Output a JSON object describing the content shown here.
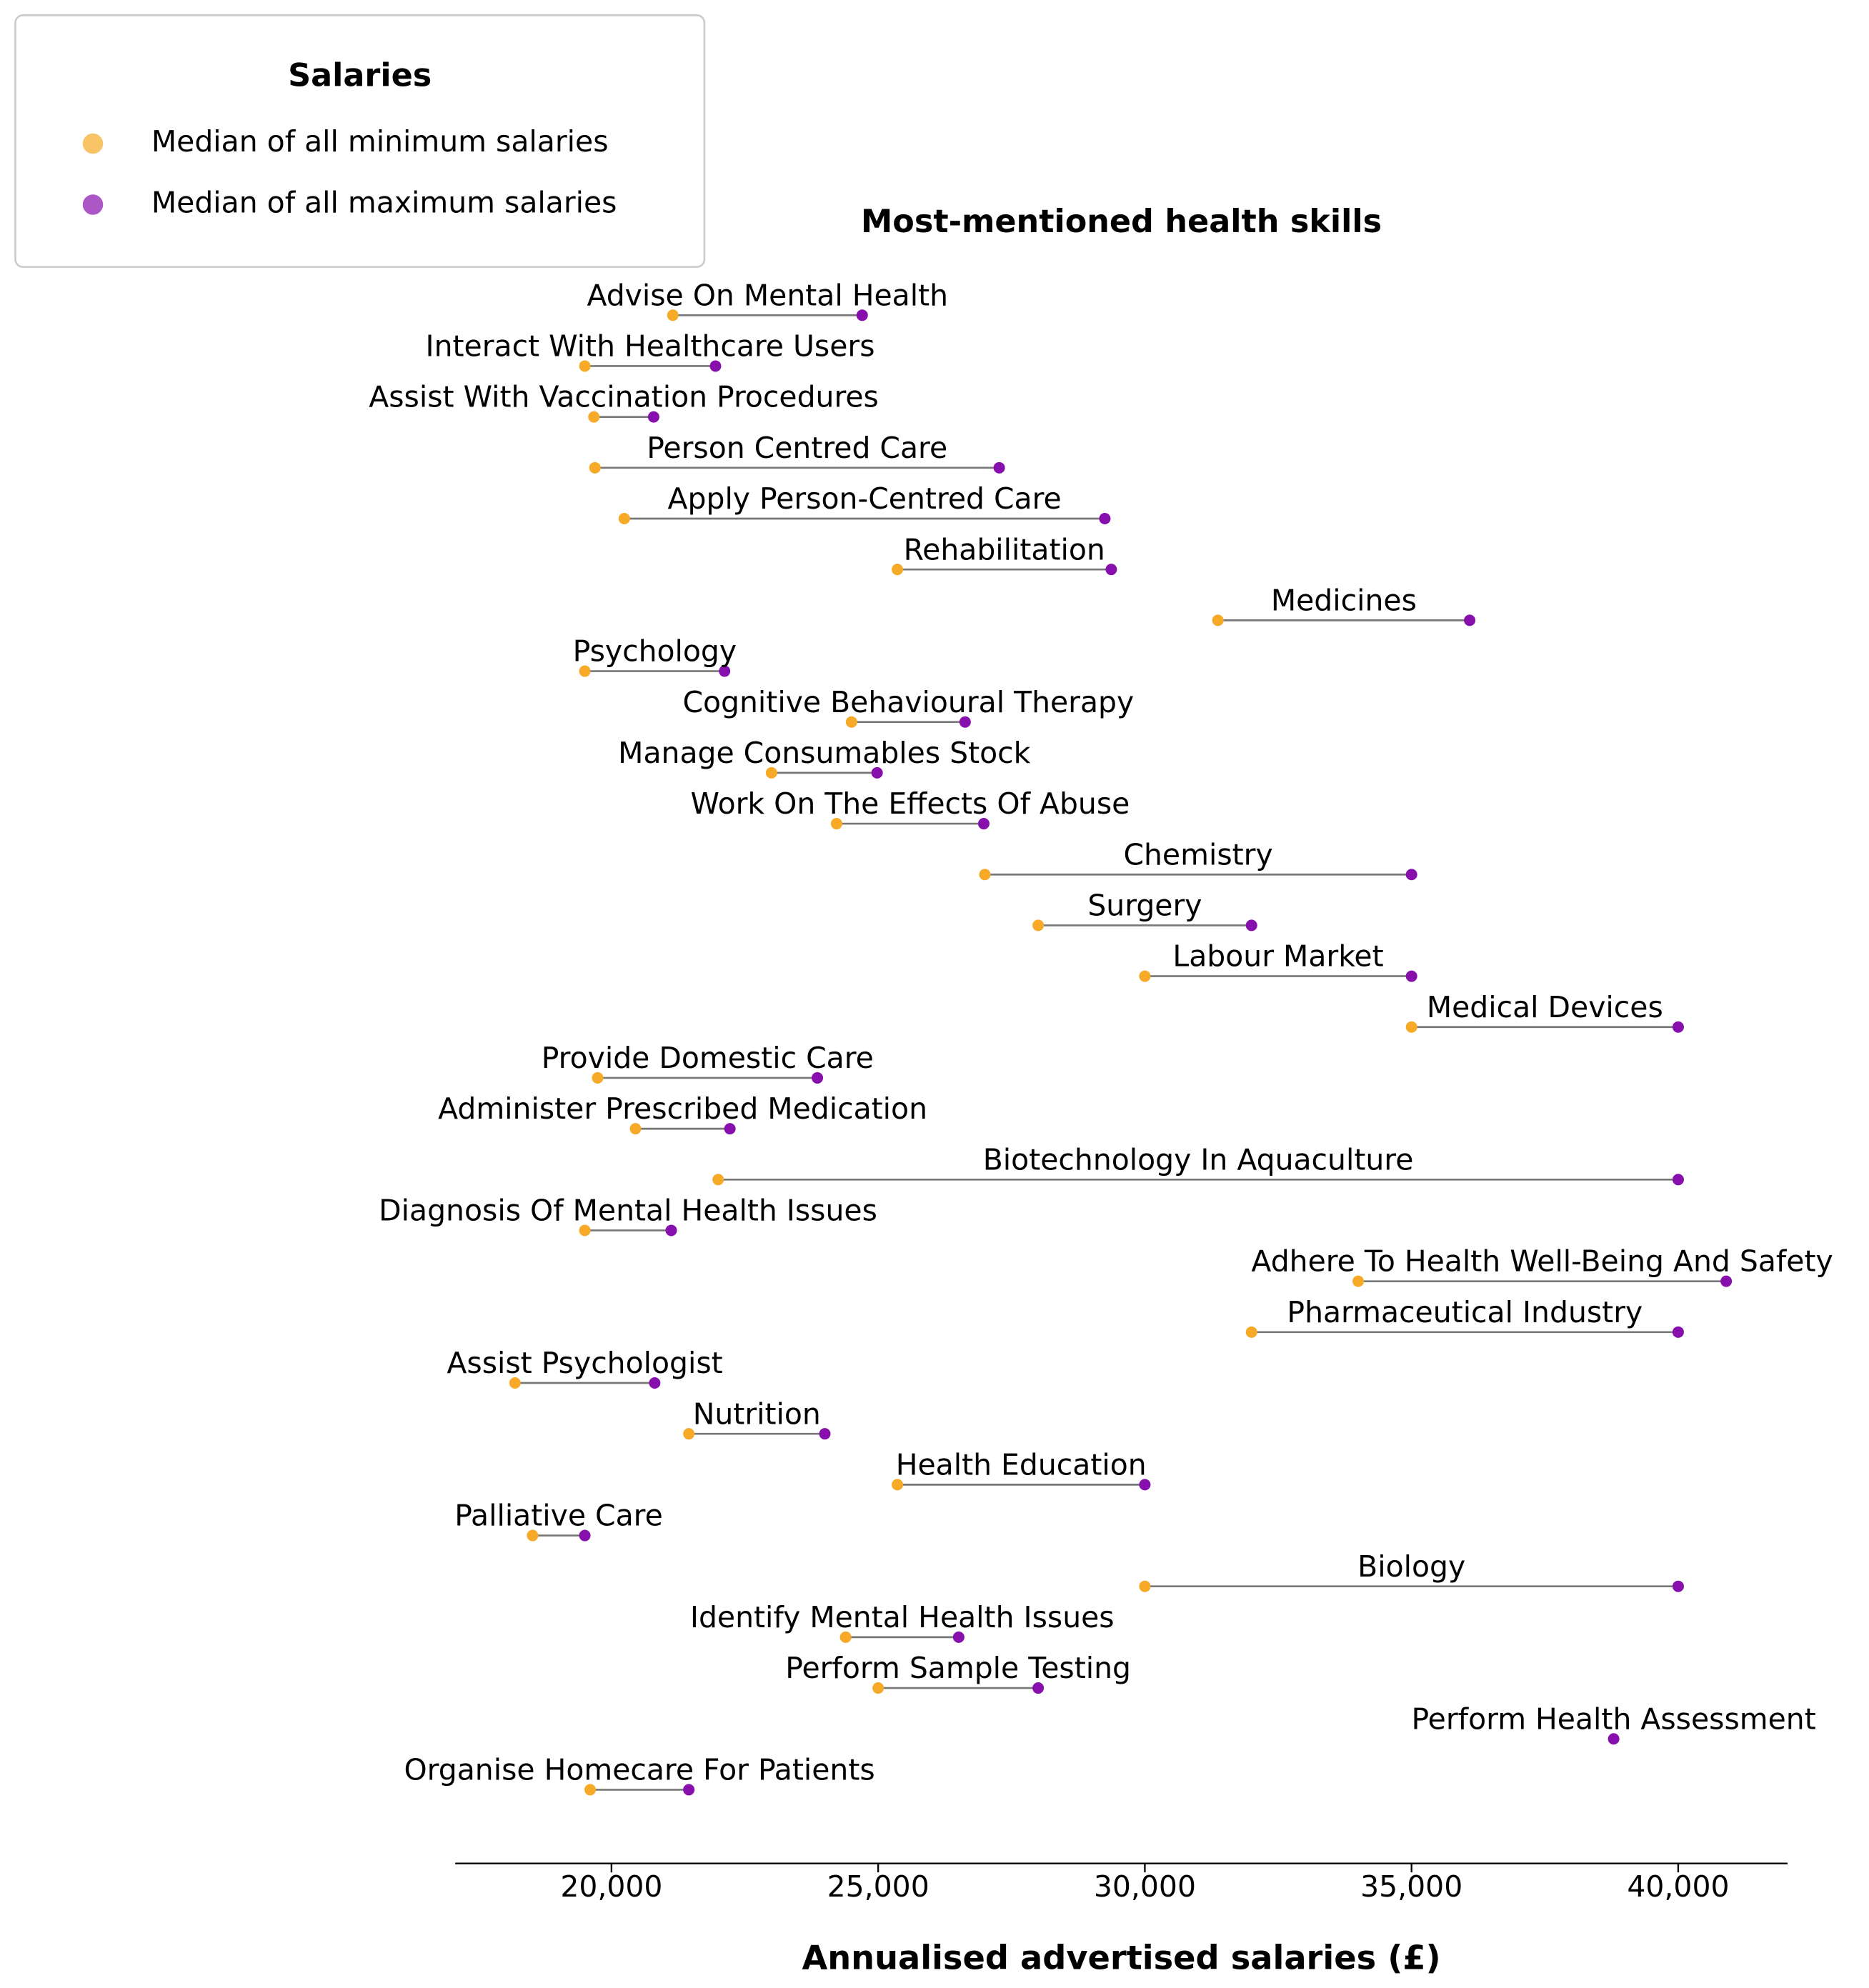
{
  "chart_data": {
    "type": "dumbbell",
    "title": "Most-mentioned health skills",
    "x_label": "Annualised advertised salaries (£)",
    "legend_title": "Salaries",
    "legend_position": "upper left",
    "categories": [
      "Advise On Mental Health",
      "Interact With Healthcare Users",
      "Assist With Vaccination Procedures",
      "Person Centred Care",
      "Apply Person-Centred Care",
      "Rehabilitation",
      "Medicines",
      "Psychology",
      "Cognitive Behavioural Therapy",
      "Manage Consumables Stock",
      "Work On The Effects Of Abuse",
      "Chemistry",
      "Surgery",
      "Labour Market",
      "Medical Devices",
      "Provide Domestic Care",
      "Administer Prescribed Medication",
      "Biotechnology In Aquaculture",
      "Diagnosis Of Mental Health Issues",
      "Adhere To Health Well-Being And Safety",
      "Pharmaceutical Industry",
      "Assist Psychologist",
      "Nutrition",
      "Health Education",
      "Palliative Care",
      "Biology",
      "Identify Mental Health Issues",
      "Perform Sample Testing",
      "Perform Health Assessment",
      "Organise Homecare For Patients"
    ],
    "series": [
      {
        "name": "Median of all minimum salaries",
        "color": "#f7a928",
        "values": [
          21150,
          19500,
          19670,
          19690,
          20240,
          25360,
          31370,
          19500,
          24500,
          23000,
          24220,
          27000,
          28000,
          30000,
          35000,
          19740,
          20450,
          22000,
          19500,
          34000,
          32000,
          18190,
          21450,
          25360,
          18520,
          30000,
          24390,
          25000,
          null,
          19600
        ]
      },
      {
        "name": "Median of all maximum salaries",
        "color": "#8710ad",
        "values": [
          24700,
          21950,
          20790,
          27270,
          29250,
          29370,
          36090,
          22120,
          26630,
          24980,
          26980,
          35000,
          32000,
          35000,
          40000,
          23860,
          22220,
          40000,
          21120,
          40900,
          40000,
          20810,
          24000,
          30000,
          19500,
          40000,
          26510,
          28000,
          38790,
          21450
        ]
      }
    ],
    "xlim": [
      17070,
      42050
    ],
    "xticks": [
      {
        "value": 20000,
        "label": "20,000"
      },
      {
        "value": 25000,
        "label": "25,000"
      },
      {
        "value": 30000,
        "label": "30,000"
      },
      {
        "value": 35000,
        "label": "35,000"
      },
      {
        "value": 40000,
        "label": "40,000"
      }
    ]
  }
}
